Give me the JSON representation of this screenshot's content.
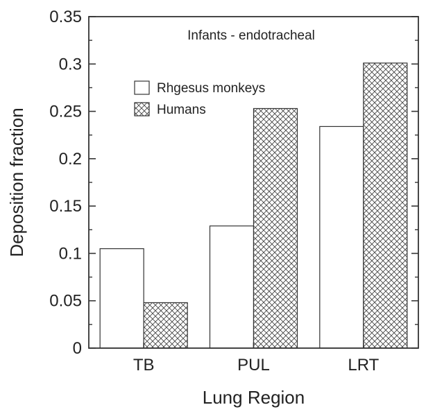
{
  "chart_data": {
    "type": "bar",
    "title": "",
    "annotation": "Infants - endotracheal",
    "xlabel": "Lung Region",
    "ylabel": "Deposition fraction",
    "categories": [
      "TB",
      "PUL",
      "LRT"
    ],
    "series": [
      {
        "name": "Rhgesus monkeys",
        "values": [
          0.105,
          0.129,
          0.234
        ],
        "fill": "#ffffff"
      },
      {
        "name": "Humans",
        "values": [
          0.048,
          0.253,
          0.301
        ],
        "fill": "crosshatch"
      }
    ],
    "ylim": [
      0,
      0.35
    ],
    "yticks": [
      0,
      0.05,
      0.1,
      0.15,
      0.2,
      0.25,
      0.3,
      0.35
    ],
    "ytick_labels": [
      "0",
      "0.05",
      "0.1",
      "0.15",
      "0.2",
      "0.25",
      "0.3",
      "0.35"
    ],
    "grid": false,
    "legend_position": "top-left",
    "colors": {
      "axis": "#333333",
      "bar_edge": "#333333",
      "hatch": "#444444",
      "background": "#ffffff"
    }
  }
}
